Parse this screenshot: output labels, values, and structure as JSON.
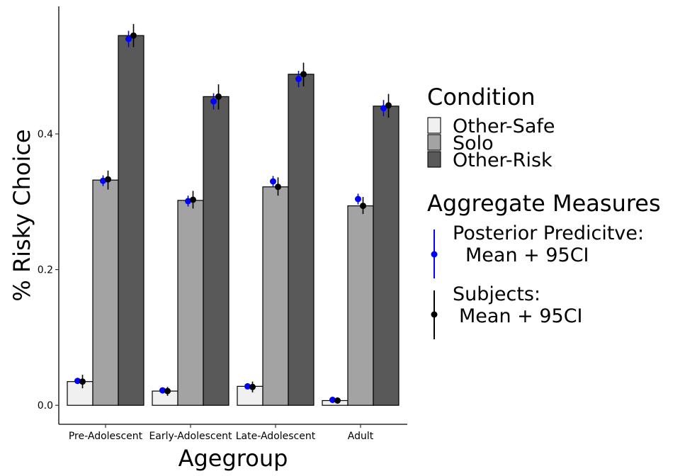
{
  "chart_data": {
    "type": "bar",
    "xlabel": "Agegroup",
    "ylabel": "% Risky Choice",
    "ylim": [
      -0.028,
      0.588
    ],
    "yticks": [
      0.0,
      0.2,
      0.4
    ],
    "ytick_labels": [
      "0.0",
      "0.2",
      "0.4"
    ],
    "categories": [
      "Pre-Adolescent",
      "Early-Adolescent",
      "Late-Adolescent",
      "Adult"
    ],
    "series": [
      {
        "name": "Other-Safe",
        "color": "#f0f0f0",
        "values": [
          0.035,
          0.021,
          0.028,
          0.007
        ]
      },
      {
        "name": "Solo",
        "color": "#a3a3a3",
        "values": [
          0.332,
          0.302,
          0.322,
          0.294
        ]
      },
      {
        "name": "Other-Risk",
        "color": "#595959",
        "values": [
          0.545,
          0.455,
          0.488,
          0.441
        ]
      }
    ],
    "aggregate_measures": [
      {
        "name": "Posterior Predictive",
        "color": "#0000ff",
        "points": [
          [
            {
              "mean": 0.036,
              "lo": 0.033,
              "hi": 0.039
            },
            {
              "mean": 0.331,
              "lo": 0.323,
              "hi": 0.339
            },
            {
              "mean": 0.54,
              "lo": 0.528,
              "hi": 0.552
            }
          ],
          [
            {
              "mean": 0.022,
              "lo": 0.019,
              "hi": 0.025
            },
            {
              "mean": 0.301,
              "lo": 0.293,
              "hi": 0.309
            },
            {
              "mean": 0.448,
              "lo": 0.436,
              "hi": 0.46
            }
          ],
          [
            {
              "mean": 0.028,
              "lo": 0.025,
              "hi": 0.031
            },
            {
              "mean": 0.33,
              "lo": 0.322,
              "hi": 0.338
            },
            {
              "mean": 0.481,
              "lo": 0.469,
              "hi": 0.493
            }
          ],
          [
            {
              "mean": 0.008,
              "lo": 0.006,
              "hi": 0.01
            },
            {
              "mean": 0.304,
              "lo": 0.296,
              "hi": 0.312
            },
            {
              "mean": 0.438,
              "lo": 0.426,
              "hi": 0.45
            }
          ]
        ]
      },
      {
        "name": "Subjects",
        "color": "#000000",
        "points": [
          [
            {
              "mean": 0.035,
              "lo": 0.025,
              "hi": 0.045
            },
            {
              "mean": 0.333,
              "lo": 0.318,
              "hi": 0.346
            },
            {
              "mean": 0.545,
              "lo": 0.528,
              "hi": 0.562
            }
          ],
          [
            {
              "mean": 0.021,
              "lo": 0.014,
              "hi": 0.027
            },
            {
              "mean": 0.303,
              "lo": 0.29,
              "hi": 0.316
            },
            {
              "mean": 0.455,
              "lo": 0.436,
              "hi": 0.473
            }
          ],
          [
            {
              "mean": 0.027,
              "lo": 0.019,
              "hi": 0.035
            },
            {
              "mean": 0.322,
              "lo": 0.309,
              "hi": 0.336
            },
            {
              "mean": 0.488,
              "lo": 0.47,
              "hi": 0.505
            }
          ],
          [
            {
              "mean": 0.007,
              "lo": 0.004,
              "hi": 0.01
            },
            {
              "mean": 0.294,
              "lo": 0.282,
              "hi": 0.307
            },
            {
              "mean": 0.442,
              "lo": 0.424,
              "hi": 0.459
            }
          ]
        ]
      }
    ],
    "legend": {
      "placement": "right",
      "condition_title": "Condition",
      "aggregate_title": "Aggregate Measures",
      "aggregate_entries": [
        {
          "line1": "Posterior Predicitve:",
          "line2": "Mean + 95CI",
          "color": "#0000ff"
        },
        {
          "line1": "Subjects:",
          "line2": "Mean + 95CI",
          "color": "#000000"
        }
      ]
    },
    "grid": false
  }
}
